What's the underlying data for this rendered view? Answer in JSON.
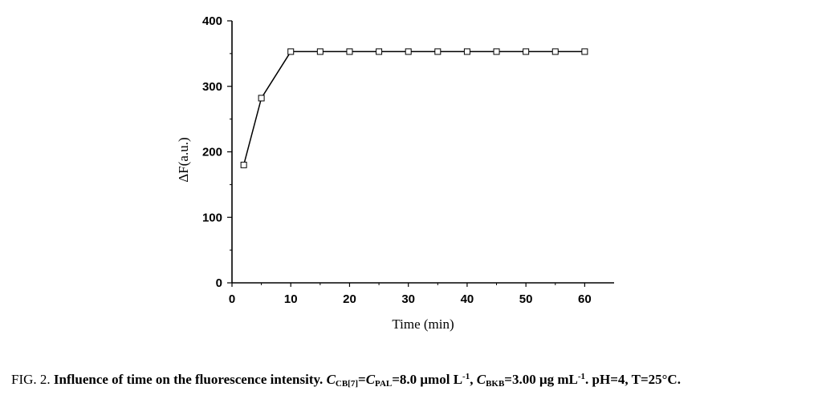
{
  "chart_data": {
    "type": "line",
    "x": [
      2,
      5,
      10,
      15,
      20,
      25,
      30,
      35,
      40,
      45,
      50,
      55,
      60
    ],
    "series": [
      {
        "values": [
          180,
          282,
          353,
          353,
          353,
          353,
          353,
          353,
          353,
          353,
          353,
          353,
          353
        ]
      }
    ],
    "xlabel": "Time (min)",
    "ylabel": "ΔF(a.u.)",
    "xlim": [
      0,
      65
    ],
    "ylim": [
      0,
      400
    ],
    "xticks": [
      0,
      10,
      20,
      30,
      40,
      50,
      60
    ],
    "yticks": [
      0,
      100,
      200,
      300,
      400
    ],
    "marker": "open-square",
    "line_color": "#000000",
    "grid": false
  },
  "caption": {
    "fig_label": "FIG. 2.",
    "title": "Influence of time on the fluorescence intensity.",
    "c1": "C",
    "c1_sub": "CB[7]",
    "eq1": "=",
    "c2": "C",
    "c2_sub": "PAL",
    "value1": "=8.0 μmol L",
    "value1_sup": "-1",
    "sep": ", ",
    "c3": "C",
    "c3_sub": "BKB",
    "value2": "=3.00 μg mL",
    "value2_sup": "-1",
    "tail": ". pH=4, T=25°C."
  }
}
